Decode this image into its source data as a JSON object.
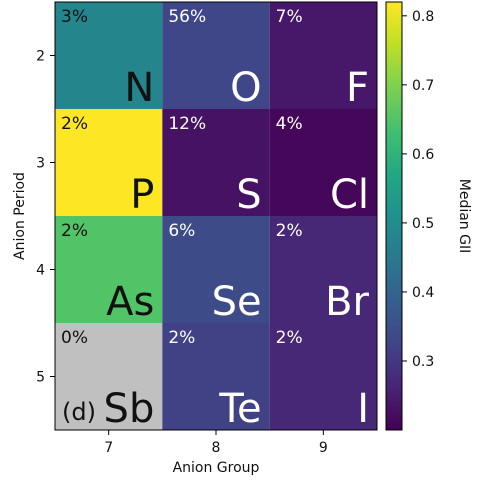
{
  "chart_data": {
    "type": "heatmap",
    "title": "",
    "panel_label": "(d)",
    "xlabel": "Anion Group",
    "ylabel": "Anion Period",
    "x_categories": [
      "7",
      "8",
      "9"
    ],
    "y_categories": [
      "2",
      "3",
      "4",
      "5"
    ],
    "colorbar": {
      "label": "Median GII",
      "min": 0.2,
      "max": 0.82,
      "ticks": [
        "0.3",
        "0.4",
        "0.5",
        "0.6",
        "0.7",
        "0.8"
      ]
    },
    "missing_color": "#c0c0c0",
    "cells": [
      {
        "group": "7",
        "period": "2",
        "element": "N",
        "percent": "3%",
        "median_gii": 0.48
      },
      {
        "group": "8",
        "period": "2",
        "element": "O",
        "percent": "56%",
        "median_gii": 0.33
      },
      {
        "group": "9",
        "period": "2",
        "element": "F",
        "percent": "7%",
        "median_gii": 0.24
      },
      {
        "group": "7",
        "period": "3",
        "element": "P",
        "percent": "2%",
        "median_gii": 0.82
      },
      {
        "group": "8",
        "period": "3",
        "element": "S",
        "percent": "12%",
        "median_gii": 0.23
      },
      {
        "group": "9",
        "period": "3",
        "element": "Cl",
        "percent": "4%",
        "median_gii": 0.21
      },
      {
        "group": "7",
        "period": "4",
        "element": "As",
        "percent": "2%",
        "median_gii": 0.65
      },
      {
        "group": "8",
        "period": "4",
        "element": "Se",
        "percent": "6%",
        "median_gii": 0.34
      },
      {
        "group": "9",
        "period": "4",
        "element": "Br",
        "percent": "2%",
        "median_gii": 0.27
      },
      {
        "group": "7",
        "period": "5",
        "element": "Sb",
        "percent": "0%",
        "median_gii": null
      },
      {
        "group": "8",
        "period": "5",
        "element": "Te",
        "percent": "2%",
        "median_gii": 0.32
      },
      {
        "group": "9",
        "period": "5",
        "element": "I",
        "percent": "2%",
        "median_gii": 0.27
      }
    ]
  }
}
